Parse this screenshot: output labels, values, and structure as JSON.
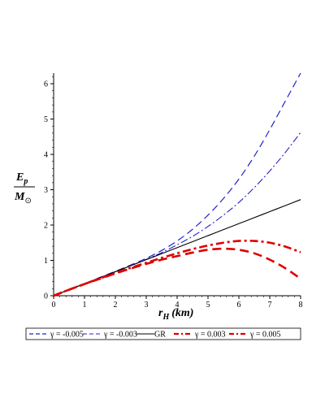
{
  "chart_data": {
    "type": "line",
    "title": "",
    "xlabel": {
      "main": "r",
      "sub": "H",
      "unit": "(km)"
    },
    "ylabel": {
      "num_main": "E",
      "num_sub": "p",
      "den_main": "M",
      "den_sub": "⊙"
    },
    "xlim": [
      0,
      8
    ],
    "ylim": [
      0,
      6.3
    ],
    "x_ticks": [
      "0",
      "1",
      "2",
      "3",
      "4",
      "5",
      "6",
      "7",
      "8"
    ],
    "y_ticks": [
      "0",
      "1",
      "2",
      "3",
      "4",
      "5",
      "6"
    ],
    "grid": false,
    "legend_position": "bottom",
    "x": [
      0,
      0.5,
      1,
      1.5,
      2,
      2.5,
      3,
      3.5,
      4,
      4.5,
      5,
      5.5,
      6,
      6.5,
      7,
      7.5,
      8
    ],
    "series": [
      {
        "name": "γ = -0.005",
        "color": "#2222cc",
        "style": "dash",
        "values": [
          0,
          0.17,
          0.34,
          0.52,
          0.69,
          0.87,
          1.06,
          1.28,
          1.55,
          1.88,
          2.28,
          2.75,
          3.3,
          3.95,
          4.7,
          5.5,
          6.3
        ]
      },
      {
        "name": "γ = -0.003",
        "color": "#2222cc",
        "style": "dashdot",
        "values": [
          0,
          0.17,
          0.34,
          0.51,
          0.68,
          0.85,
          1.03,
          1.22,
          1.44,
          1.68,
          1.96,
          2.28,
          2.64,
          3.06,
          3.53,
          4.05,
          4.62
        ]
      },
      {
        "name": "GR",
        "color": "#000000",
        "style": "solid",
        "values": [
          0,
          0.17,
          0.34,
          0.51,
          0.68,
          0.85,
          1.02,
          1.19,
          1.36,
          1.53,
          1.7,
          1.87,
          2.04,
          2.21,
          2.38,
          2.55,
          2.72
        ]
      },
      {
        "name": "γ = 0.003",
        "color": "#dd0000",
        "style": "dashdot-thick",
        "values": [
          0,
          0.17,
          0.33,
          0.49,
          0.64,
          0.79,
          0.93,
          1.07,
          1.2,
          1.32,
          1.42,
          1.5,
          1.55,
          1.55,
          1.5,
          1.39,
          1.23
        ]
      },
      {
        "name": "γ = 0.005",
        "color": "#dd0000",
        "style": "dash-thick",
        "values": [
          0,
          0.17,
          0.33,
          0.48,
          0.63,
          0.77,
          0.9,
          1.02,
          1.12,
          1.22,
          1.3,
          1.33,
          1.3,
          1.2,
          1.02,
          0.78,
          0.48
        ]
      }
    ]
  }
}
